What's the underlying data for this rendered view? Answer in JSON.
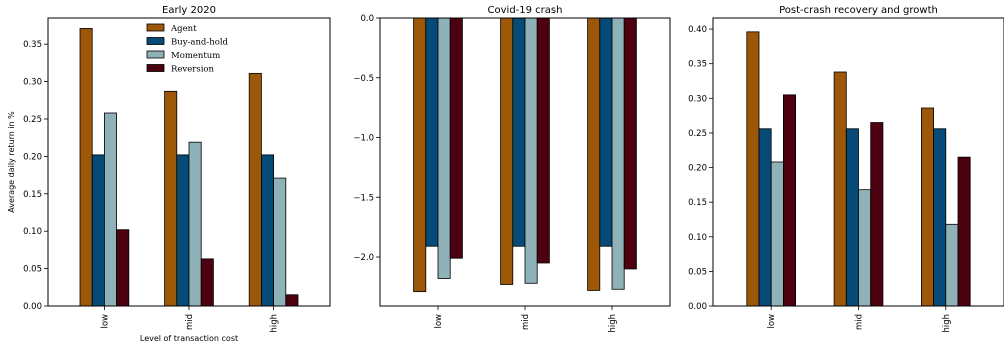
{
  "colors": {
    "Agent": "#9c5708",
    "Buy-and-hold": "#064a78",
    "Momentum": "#8fb2b9",
    "Reversion": "#4d0110"
  },
  "chart_data": [
    {
      "type": "bar",
      "title": "Early 2020",
      "xlabel": "Level of transaction cost",
      "ylabel": "Average daily return in %",
      "categories": [
        "low",
        "mid",
        "high"
      ],
      "series": [
        {
          "name": "Agent",
          "values": [
            0.371,
            0.287,
            0.311
          ]
        },
        {
          "name": "Buy-and-hold",
          "values": [
            0.202,
            0.202,
            0.202
          ]
        },
        {
          "name": "Momentum",
          "values": [
            0.258,
            0.219,
            0.171
          ]
        },
        {
          "name": "Reversion",
          "values": [
            0.102,
            0.063,
            0.015
          ]
        }
      ],
      "ylim": [
        0,
        0.385
      ],
      "yticks": [
        0.0,
        0.05,
        0.1,
        0.15,
        0.2,
        0.25,
        0.3,
        0.35
      ],
      "ytick_labels": [
        "0.00",
        "0.05",
        "0.10",
        "0.15",
        "0.20",
        "0.25",
        "0.30",
        "0.35"
      ],
      "legend": "top-center",
      "grid": false
    },
    {
      "type": "bar",
      "title": "Covid-19 crash",
      "xlabel": "",
      "ylabel": "",
      "categories": [
        "low",
        "mid",
        "high"
      ],
      "series": [
        {
          "name": "Agent",
          "values": [
            -2.29,
            -2.23,
            -2.28
          ]
        },
        {
          "name": "Buy-and-hold",
          "values": [
            -1.91,
            -1.91,
            -1.91
          ]
        },
        {
          "name": "Momentum",
          "values": [
            -2.18,
            -2.22,
            -2.27
          ]
        },
        {
          "name": "Reversion",
          "values": [
            -2.01,
            -2.05,
            -2.1
          ]
        }
      ],
      "ylim": [
        -2.41,
        0
      ],
      "yticks": [
        0.0,
        -0.5,
        -1.0,
        -1.5,
        -2.0
      ],
      "ytick_labels": [
        "0.0",
        "−0.5",
        "−1.0",
        "−1.5",
        "−2.0"
      ],
      "grid": false
    },
    {
      "type": "bar",
      "title": "Post-crash recovery and growth",
      "xlabel": "",
      "ylabel": "",
      "categories": [
        "low",
        "mid",
        "high"
      ],
      "series": [
        {
          "name": "Agent",
          "values": [
            0.396,
            0.338,
            0.286
          ]
        },
        {
          "name": "Buy-and-hold",
          "values": [
            0.256,
            0.256,
            0.256
          ]
        },
        {
          "name": "Momentum",
          "values": [
            0.208,
            0.168,
            0.118
          ]
        },
        {
          "name": "Reversion",
          "values": [
            0.305,
            0.265,
            0.215
          ]
        }
      ],
      "ylim": [
        0,
        0.416
      ],
      "yticks": [
        0.0,
        0.05,
        0.1,
        0.15,
        0.2,
        0.25,
        0.3,
        0.35,
        0.4
      ],
      "ytick_labels": [
        "0.00",
        "0.05",
        "0.10",
        "0.15",
        "0.20",
        "0.25",
        "0.30",
        "0.35",
        "0.40"
      ],
      "grid": false
    }
  ]
}
